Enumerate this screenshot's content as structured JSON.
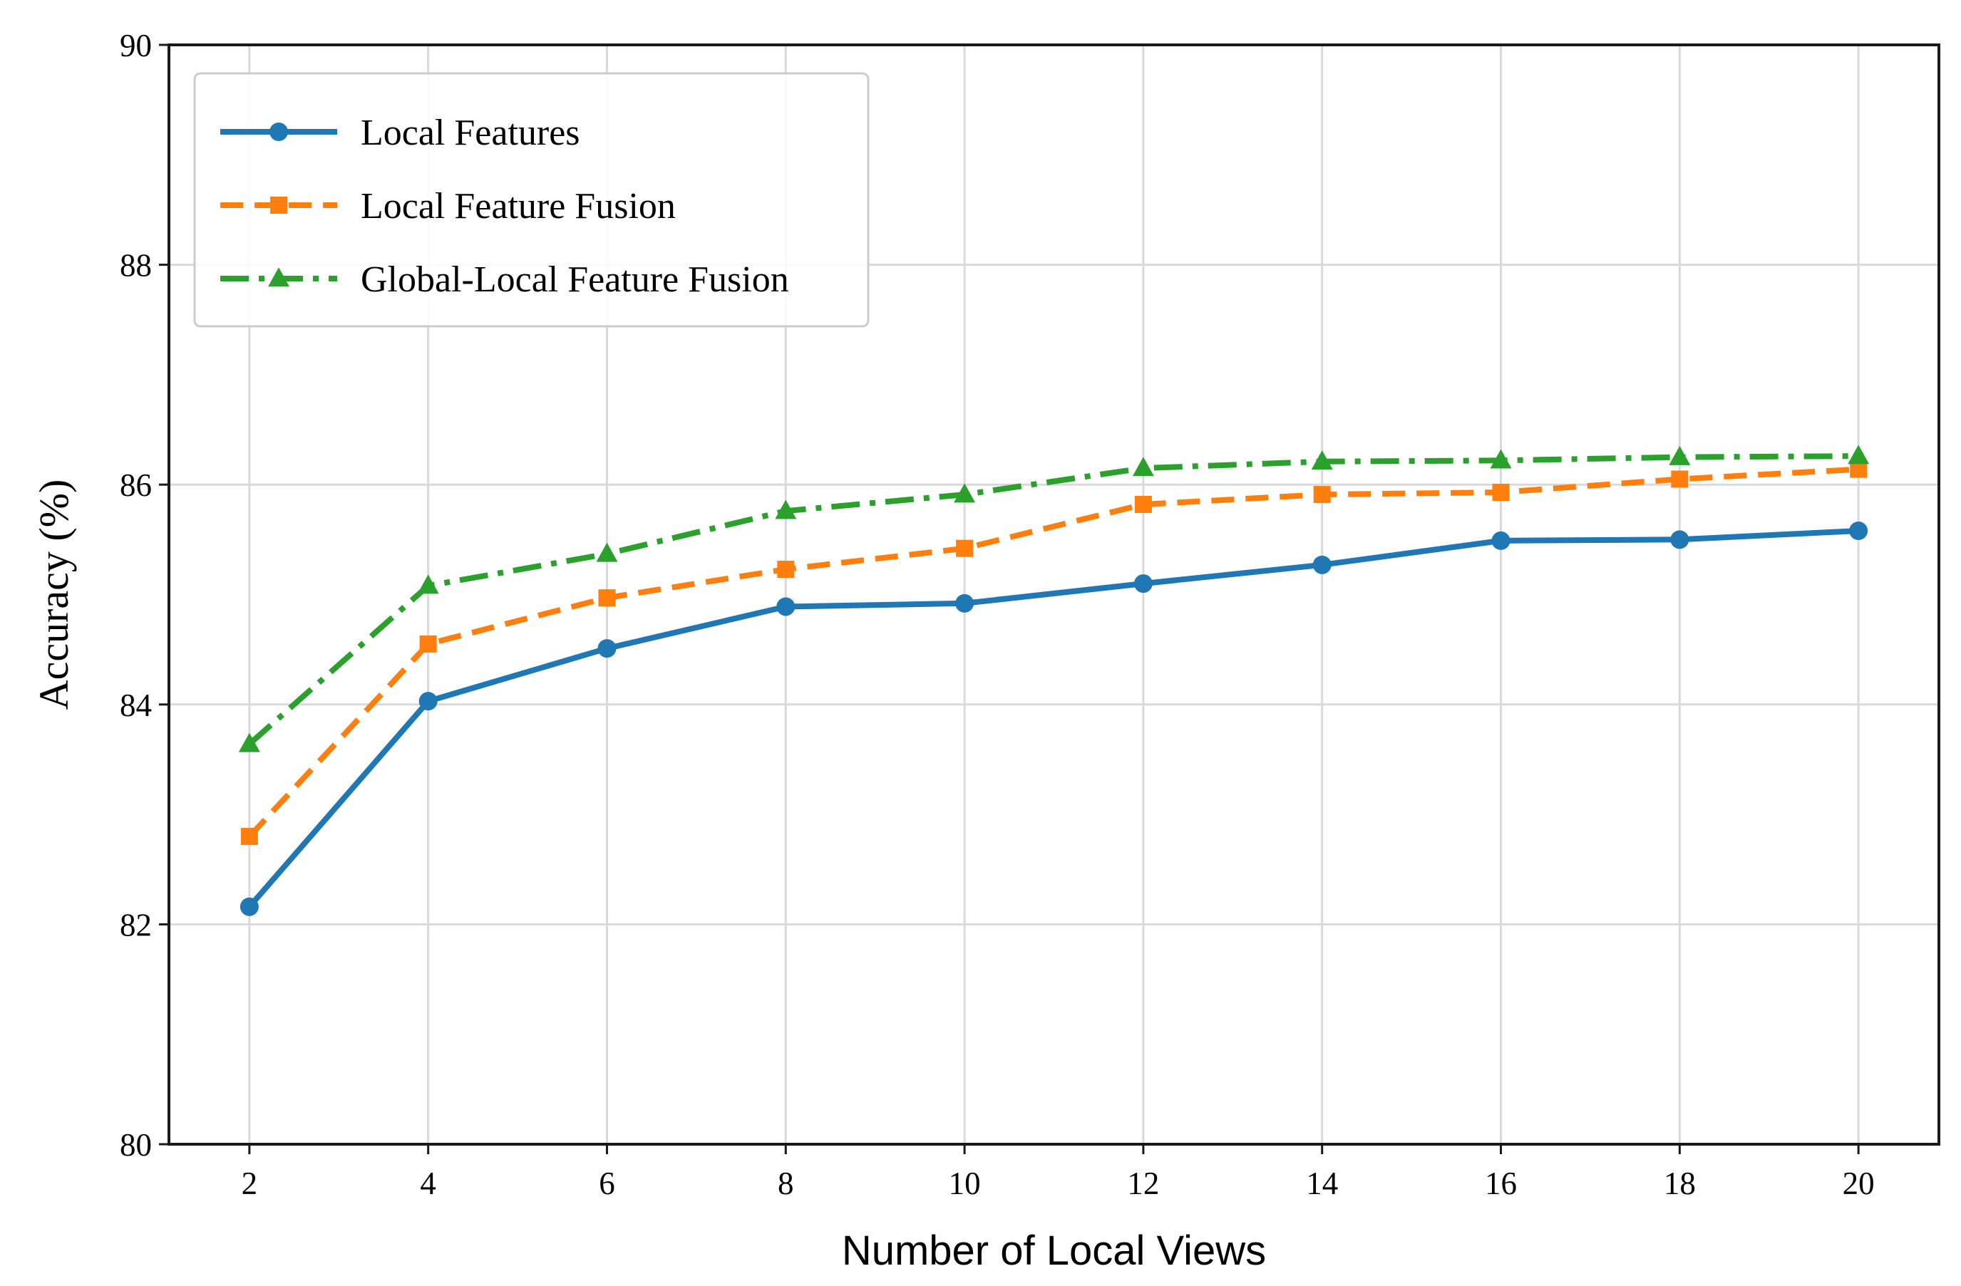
{
  "chart_data": {
    "type": "line",
    "xlabel": "Number of Local Views",
    "ylabel": "Accuracy (%)",
    "x": [
      2,
      4,
      6,
      8,
      10,
      12,
      14,
      16,
      18,
      20
    ],
    "xlim": [
      1.1,
      20.9
    ],
    "ylim": [
      80,
      90
    ],
    "xticks": [
      2,
      4,
      6,
      8,
      10,
      12,
      14,
      16,
      18,
      20
    ],
    "yticks": [
      80,
      82,
      84,
      86,
      88,
      90
    ],
    "grid": true,
    "legend_position": "top-left",
    "series": [
      {
        "name": "Local Features",
        "color": "#1f77b4",
        "marker": "circle",
        "linestyle": "solid",
        "values": [
          82.16,
          84.03,
          84.51,
          84.89,
          84.92,
          85.1,
          85.27,
          85.49,
          85.5,
          85.58
        ]
      },
      {
        "name": "Local Feature Fusion",
        "color": "#ff7f0e",
        "marker": "square",
        "linestyle": "dashed",
        "values": [
          82.8,
          84.55,
          84.97,
          85.23,
          85.42,
          85.82,
          85.91,
          85.93,
          86.05,
          86.14
        ]
      },
      {
        "name": "Global-Local Feature Fusion",
        "color": "#2ca02c",
        "marker": "triangle",
        "linestyle": "dashdot",
        "values": [
          83.64,
          85.08,
          85.37,
          85.76,
          85.91,
          86.15,
          86.21,
          86.22,
          86.25,
          86.26
        ]
      }
    ]
  }
}
